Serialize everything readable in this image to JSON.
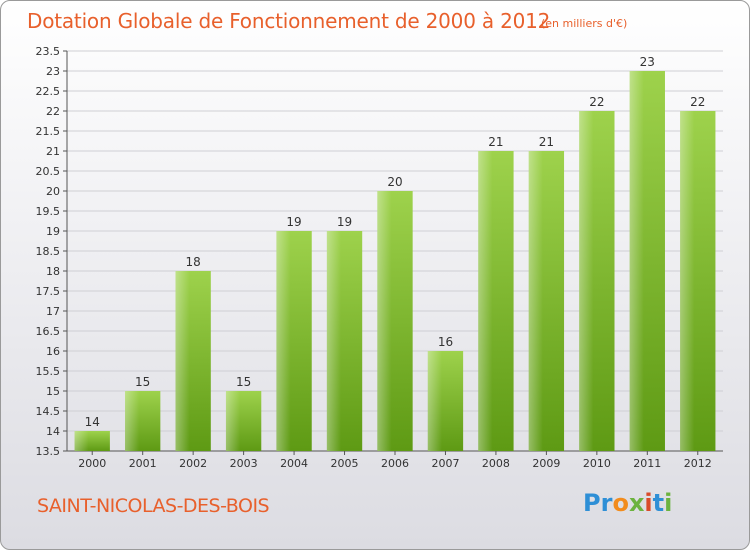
{
  "header": {
    "title": "Dotation Globale de Fonctionnement de 2000 à 2012",
    "unit": "(en milliers d'€)"
  },
  "footer": {
    "commune": "SAINT-NICOLAS-DES-BOIS",
    "logo_text": "Proxiti"
  },
  "colors": {
    "title": "#e8602c",
    "bar_light": "#9ed24c",
    "bar_dark": "#5e9a14",
    "grid": "#cfcfd4"
  },
  "chart_data": {
    "type": "bar",
    "title": "Dotation Globale de Fonctionnement de 2000 à 2012",
    "subtitle": "(en milliers d'€)",
    "xlabel": "",
    "ylabel": "",
    "categories": [
      "2000",
      "2001",
      "2002",
      "2003",
      "2004",
      "2005",
      "2006",
      "2007",
      "2008",
      "2009",
      "2010",
      "2011",
      "2012"
    ],
    "values": [
      14,
      15,
      18,
      15,
      19,
      19,
      20,
      16,
      21,
      21,
      22,
      23,
      22
    ],
    "ylim": [
      13.5,
      23.5
    ],
    "yticks": [
      "13.5",
      "14",
      "14.5",
      "15",
      "15.5",
      "16",
      "16.5",
      "17",
      "17.5",
      "18",
      "18.5",
      "19",
      "19.5",
      "20",
      "20.5",
      "21",
      "21.5",
      "22",
      "22.5",
      "23",
      "23.5"
    ],
    "grid": true,
    "legend": "none"
  }
}
